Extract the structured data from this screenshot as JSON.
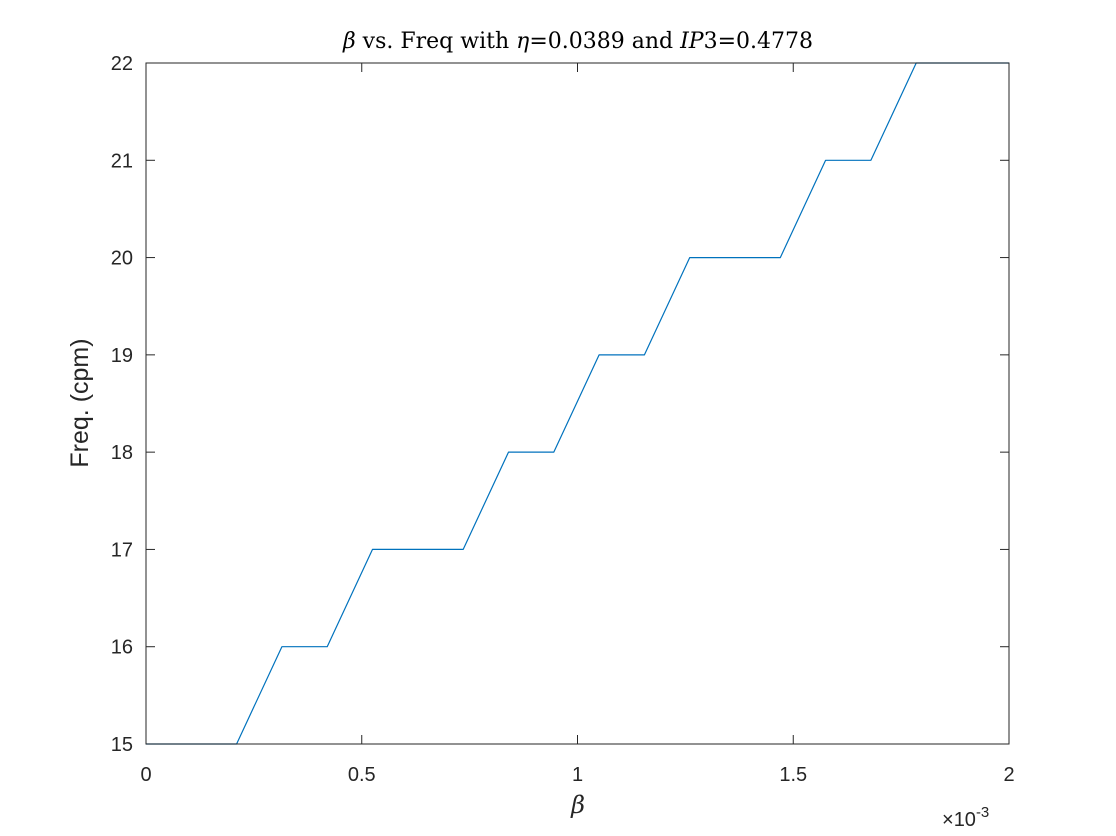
{
  "chart_data": {
    "type": "line",
    "title_parts": {
      "beta": "β",
      "part1": " vs. Freq with ",
      "eta": "η",
      "part2": "=0.0389 and ",
      "ip": "IP",
      "part3": "3=0.4778"
    },
    "xlabel": "β",
    "ylabel": "Freq. (cpm)",
    "x_exponent_label": {
      "times": "×",
      "base": "10",
      "exp": "-3"
    },
    "xlim": [
      0,
      2
    ],
    "ylim": [
      15,
      22
    ],
    "x_ticks": [
      "0",
      "0.5",
      "1",
      "1.5",
      "2"
    ],
    "x_tick_values": [
      0,
      0.5,
      1,
      1.5,
      2
    ],
    "y_ticks": [
      "15",
      "16",
      "17",
      "18",
      "19",
      "20",
      "21",
      "22"
    ],
    "y_tick_values": [
      15,
      16,
      17,
      18,
      19,
      20,
      21,
      22
    ],
    "grid": false,
    "x_units_scale": 0.001,
    "series": [
      {
        "color": "#0072BD",
        "x": [
          0,
          0.21,
          0.315,
          0.42,
          0.525,
          0.735,
          0.84,
          0.945,
          1.05,
          1.155,
          1.26,
          1.47,
          1.575,
          1.68,
          1.785,
          2.0
        ],
        "y": [
          15,
          15,
          16,
          16,
          17,
          17,
          18,
          18,
          19,
          19,
          20,
          20,
          21,
          21,
          22,
          22
        ]
      }
    ]
  }
}
